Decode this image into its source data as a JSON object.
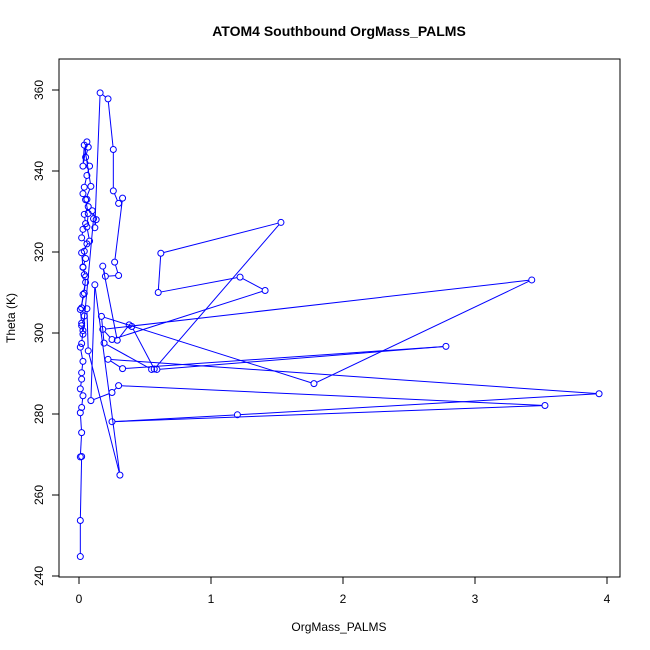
{
  "chart_data": {
    "type": "line",
    "title": "ATOM4 Southbound OrgMass_PALMS",
    "xlabel": "OrgMass_PALMS",
    "ylabel": "Theta (K)",
    "xlim": [
      0,
      4
    ],
    "ylim": [
      240,
      360
    ],
    "x_ticks": [
      "0",
      "1",
      "2",
      "3",
      "4"
    ],
    "y_ticks": [
      "240",
      "260",
      "280",
      "300",
      "320",
      "340",
      "360"
    ],
    "grid": false,
    "legend": "none",
    "color": "#0000ff",
    "markers": "open-circle",
    "series": [
      {
        "x": [
          0.01,
          0.01,
          0.02,
          0.01,
          0.02,
          0.01,
          0.02,
          0.03,
          0.01,
          0.02,
          0.02,
          0.03,
          0.01,
          0.02,
          0.03,
          0.02,
          0.04,
          0.02,
          0.03,
          0.05,
          0.04,
          0.03,
          0.05,
          0.04,
          0.06,
          0.02,
          0.03,
          0.05,
          0.04,
          0.07,
          0.06,
          0.03,
          0.04,
          0.06,
          0.08,
          0.05,
          0.07,
          0.06,
          0.03,
          0.04,
          0.09,
          0.05,
          0.07,
          0.06,
          0.08,
          0.02,
          0.03,
          0.05,
          0.04,
          0.01,
          0.02,
          0.03,
          0.11,
          0.1,
          0.13,
          0.12,
          0.16,
          0.22,
          0.26,
          0.26,
          0.3,
          0.33,
          0.27,
          0.3,
          0.2,
          0.18,
          0.29,
          0.38,
          0.4,
          0.57,
          1.53,
          0.62,
          0.6,
          1.22,
          1.41,
          0.25,
          0.18,
          3.43,
          1.78,
          0.17,
          0.19,
          0.55,
          0.59,
          2.78,
          0.33,
          0.22,
          3.94,
          1.2,
          0.25,
          3.53,
          0.3,
          0.25,
          0.09,
          0.12,
          0.31,
          0.07,
          0.06
        ],
        "y": [
          244.8,
          253.7,
          269.5,
          269.4,
          275.4,
          280.3,
          281.6,
          284.5,
          286.2,
          288.6,
          290.2,
          293.0,
          296.5,
          297.4,
          300.6,
          301.8,
          304.2,
          306.2,
          309.5,
          312.5,
          314.4,
          316.3,
          318.4,
          320.2,
          322.0,
          323.5,
          325.6,
          327.0,
          329.3,
          331.2,
          333.0,
          334.4,
          336.0,
          338.9,
          341.2,
          343.4,
          345.9,
          347.2,
          341.2,
          346.4,
          336.2,
          332.9,
          329.5,
          326.2,
          322.7,
          319.8,
          316.2,
          313.9,
          309.8,
          305.8,
          302.4,
          299.7,
          328.2,
          330.2,
          328.0,
          326.0,
          359.3,
          357.8,
          345.3,
          335.1,
          332.0,
          333.3,
          317.5,
          314.2,
          314.0,
          316.5,
          298.2,
          302.0,
          301.6,
          291.1,
          327.3,
          319.7,
          310.0,
          313.8,
          310.5,
          298.4,
          300.9,
          313.1,
          287.5,
          304.1,
          297.5,
          291.0,
          291.0,
          296.7,
          291.2,
          293.5,
          285.0,
          279.8,
          278.1,
          282.1,
          287.0,
          285.3,
          283.3,
          311.9,
          264.9,
          295.6,
          306.0
        ]
      }
    ]
  }
}
